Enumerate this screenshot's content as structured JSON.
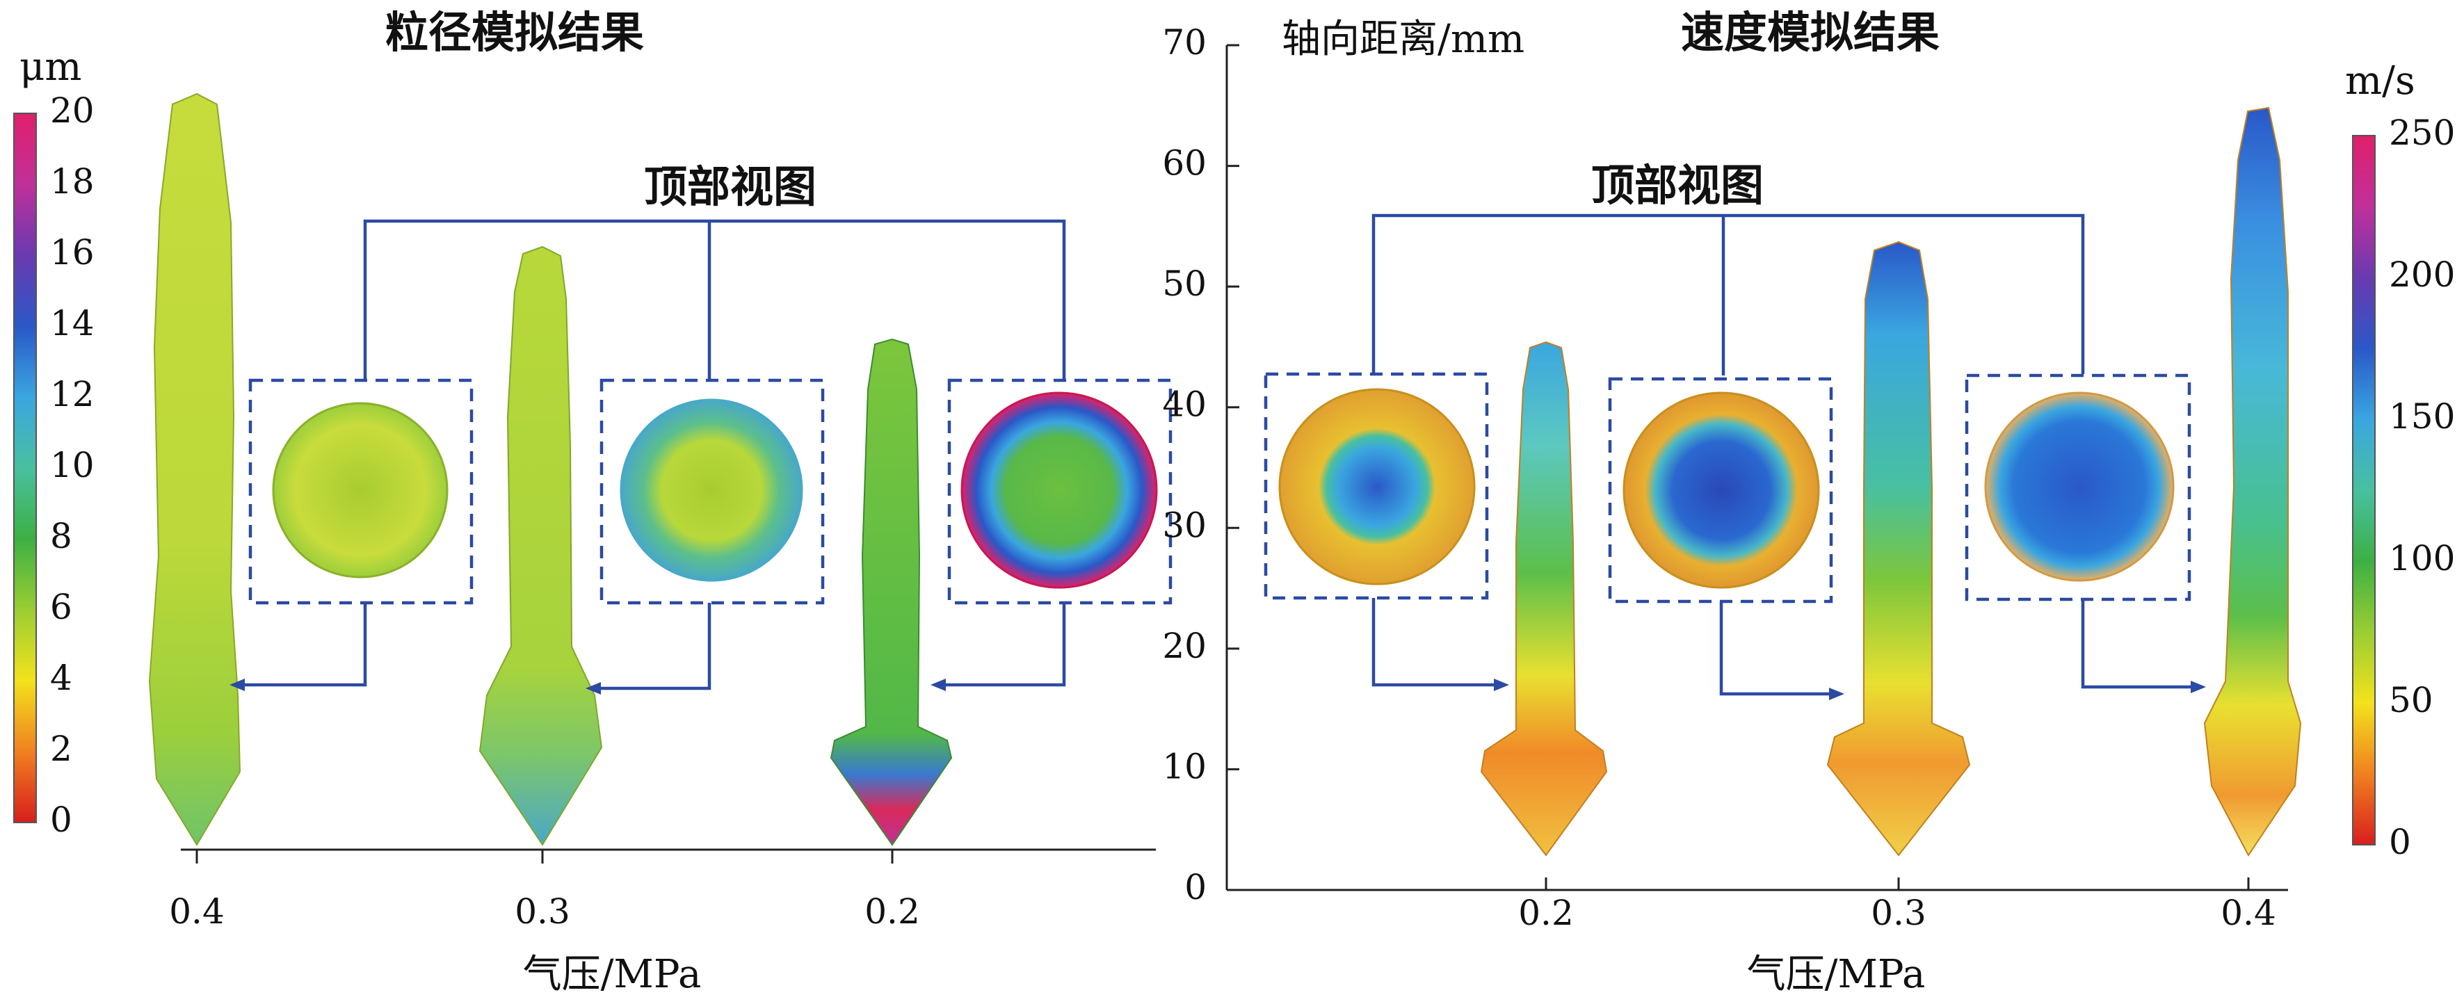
{
  "left_panel": {
    "title": "粒径模拟结果",
    "top_view_label": "顶部视图",
    "colorbar": {
      "unit": "μm",
      "ticks": [
        "0",
        "2",
        "4",
        "6",
        "8",
        "10",
        "12",
        "14",
        "16",
        "18",
        "20"
      ],
      "min": 0,
      "max": 20,
      "colors": [
        "#d81e1e",
        "#f08020",
        "#f3e21c",
        "#9acd32",
        "#3cb043",
        "#48c0a0",
        "#3aa6e0",
        "#2a58c8",
        "#6a3ab0",
        "#c0309a",
        "#e0206a"
      ]
    },
    "x_ticks": [
      "0.4",
      "0.3",
      "0.2"
    ],
    "xlabel": "气压/MPa"
  },
  "right_panel": {
    "title": "速度模拟结果",
    "ylabel": "轴向距离/mm",
    "y_ticks": [
      "0",
      "10",
      "20",
      "30",
      "40",
      "50",
      "60",
      "70"
    ],
    "y_range": [
      0,
      70
    ],
    "top_view_label": "顶部视图",
    "colorbar": {
      "unit": "m/s",
      "ticks": [
        "0",
        "50",
        "100",
        "150",
        "200",
        "250"
      ],
      "min": 0,
      "max": 250,
      "colors": [
        "#d81e1e",
        "#f08020",
        "#f3e21c",
        "#9acd32",
        "#3cb043",
        "#48c0a0",
        "#3aa6e0",
        "#2a58c8",
        "#6a3ab0",
        "#c0309a",
        "#e0206a"
      ]
    },
    "x_ticks": [
      "0.2",
      "0.3",
      "0.4"
    ],
    "xlabel": "气压/MPa"
  }
}
